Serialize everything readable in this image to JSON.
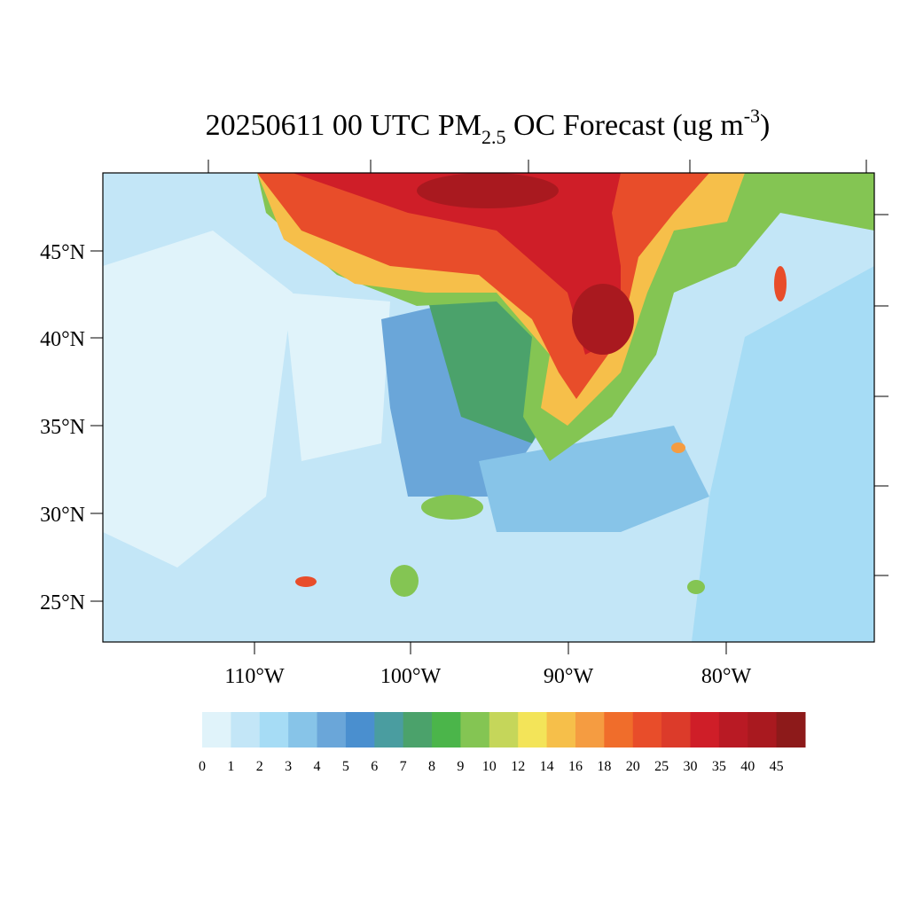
{
  "title": {
    "main": "20250611 00 UTC PM",
    "subscript": "2.5",
    "middle": " OC Forecast (ug m",
    "superscript": "-3",
    "end": ")"
  },
  "latitude_labels": [
    "45°N",
    "40°N",
    "35°N",
    "30°N",
    "25°N"
  ],
  "longitude_labels": [
    "110°W",
    "100°W",
    "90°W",
    "80°W"
  ],
  "colorbar": {
    "levels": [
      0,
      1,
      2,
      3,
      4,
      5,
      6,
      7,
      8,
      9,
      10,
      12,
      14,
      16,
      18,
      20,
      25,
      30,
      35,
      40,
      45
    ],
    "colors": [
      "#e0f3fa",
      "#c3e6f7",
      "#a6dcf5",
      "#87c4e8",
      "#6aa6d9",
      "#4a8fcf",
      "#4a9da0",
      "#4ba26b",
      "#4bb54a",
      "#84c553",
      "#c5d65a",
      "#f3e459",
      "#f6bf4a",
      "#f59c41",
      "#f06d2b",
      "#e84d2a",
      "#dc3b2a",
      "#cf1e28",
      "#b91a24",
      "#a9191f",
      "#8d1a1a"
    ]
  }
}
